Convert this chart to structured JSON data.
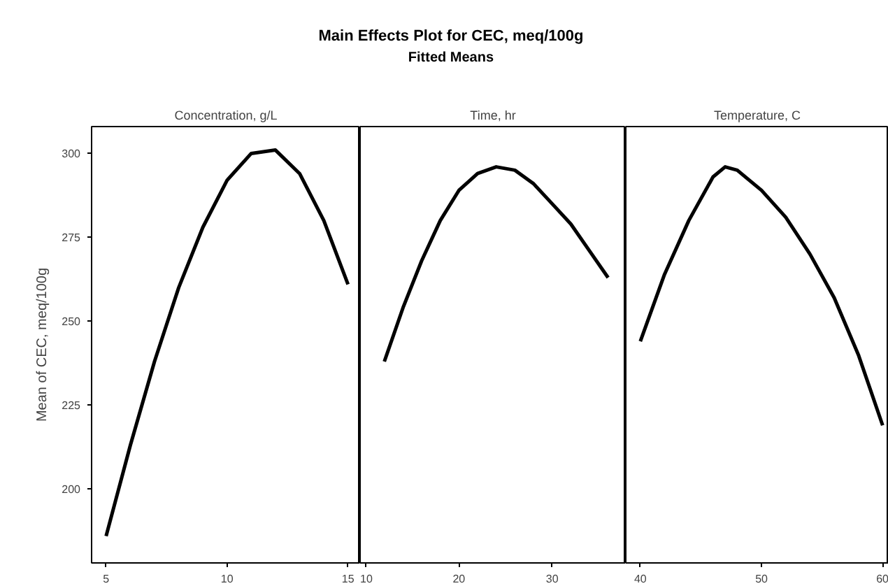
{
  "chart_data": [
    {
      "type": "line",
      "title": "Concentration, g/L",
      "annotations": [
        "Main Effects Plot for CEC, meq/100g",
        "Fitted Means"
      ],
      "ylabel": "Mean of CEC, meq/100g",
      "xlim": [
        4.4,
        15.5
      ],
      "xticks": [
        5,
        10,
        15
      ],
      "ylim": [
        178,
        308
      ],
      "yticks": [
        200,
        225,
        250,
        275,
        300
      ],
      "grid": false,
      "line_style": "solid",
      "series": [
        {
          "color": "#000000",
          "x": [
            5,
            6,
            7,
            8,
            9,
            10,
            11,
            12,
            13,
            14,
            15
          ],
          "values": [
            186,
            213,
            238,
            260,
            278,
            292,
            300,
            301,
            294,
            280,
            261
          ]
        }
      ]
    },
    {
      "type": "line",
      "title": "Time, hr",
      "xlim": [
        9.4,
        37.9
      ],
      "xticks": [
        10,
        20,
        30
      ],
      "ylim": [
        178,
        308
      ],
      "yticks": [
        200,
        225,
        250,
        275,
        300
      ],
      "grid": false,
      "line_style": "solid",
      "tick_labels": "x",
      "series": [
        {
          "color": "#000000",
          "x": [
            12,
            14,
            16,
            18,
            20,
            22,
            24,
            26,
            28,
            30,
            32,
            34,
            36
          ],
          "values": [
            238,
            254,
            268,
            280,
            289,
            294,
            296,
            295,
            291,
            285,
            279,
            271,
            263
          ]
        }
      ]
    },
    {
      "type": "line",
      "title": "Temperature, C",
      "xlim": [
        38.8,
        60.5
      ],
      "xticks": [
        40,
        50,
        60
      ],
      "ylim": [
        178,
        308
      ],
      "yticks": [
        200,
        225,
        250,
        275,
        300
      ],
      "grid": false,
      "line_style": "solid",
      "tick_labels": "x",
      "series": [
        {
          "color": "#000000",
          "x": [
            40,
            42,
            44,
            46,
            47,
            48,
            50,
            52,
            54,
            56,
            58,
            60
          ],
          "values": [
            244,
            264,
            280,
            293,
            296,
            295,
            289,
            281,
            270,
            257,
            240,
            219
          ]
        }
      ]
    }
  ]
}
